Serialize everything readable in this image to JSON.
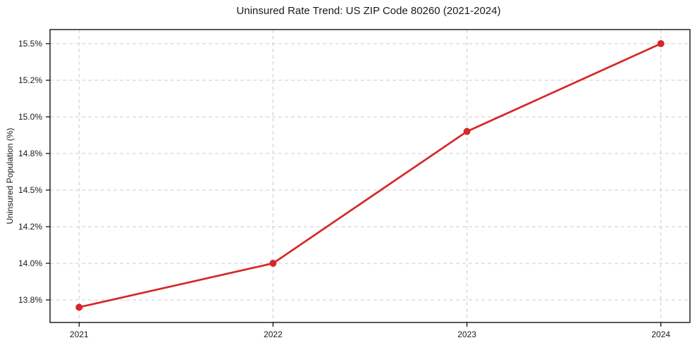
{
  "chart_data": {
    "type": "line",
    "title": "Uninsured Rate Trend: US ZIP Code 80260 (2021-2024)",
    "xlabel": "",
    "ylabel": "Uninsured Population (%)",
    "categories": [
      "2021",
      "2022",
      "2023",
      "2024"
    ],
    "x": [
      2021,
      2022,
      2023,
      2024
    ],
    "series": [
      {
        "values": [
          13.7,
          14.0,
          14.9,
          15.5
        ],
        "color": "#d62728",
        "marker": "circle",
        "marker_radius": 5,
        "line_width": 2.7
      }
    ],
    "yticks": [
      13.75,
      14.0,
      14.25,
      14.5,
      14.75,
      15.0,
      15.25,
      15.5
    ],
    "ytick_labels": [
      "13.8%",
      "14.0%",
      "14.2%",
      "14.5%",
      "14.8%",
      "15.0%",
      "15.2%",
      "15.5%"
    ],
    "ylim": [
      13.596,
      15.596
    ],
    "xlim": [
      2020.85,
      2024.15
    ],
    "grid": true,
    "grid_style": "dashed",
    "grid_color": "#cccccc",
    "axis_color": "#000000",
    "background": "#ffffff",
    "legend": "none"
  }
}
